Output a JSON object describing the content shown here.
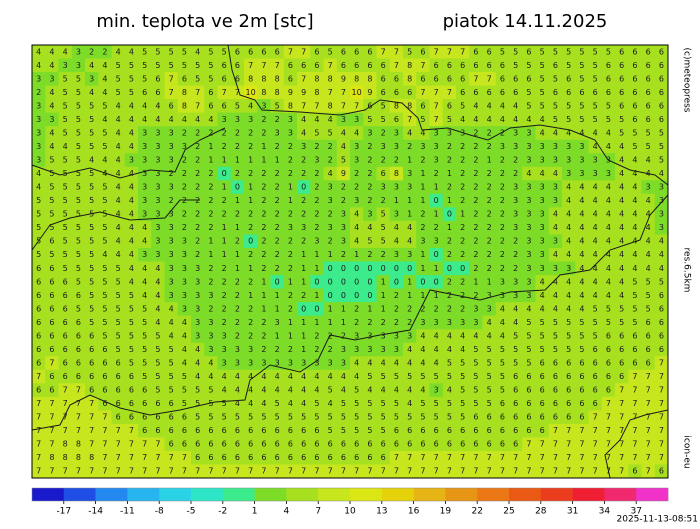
{
  "header": {
    "title": "min. teplota ve 2m [stc]",
    "date": "piatok 14.11.2025"
  },
  "side_labels": {
    "copyright": "(c)meteopress",
    "resolution": "res.6.5km",
    "model": "icon-eu"
  },
  "timestamp": "2025-11-13-08:51",
  "colorbar": {
    "lim": [
      -20,
      40
    ],
    "ticks": [
      -17,
      -14,
      -11,
      -8,
      -5,
      -2,
      1,
      4,
      7,
      10,
      13,
      16,
      19,
      22,
      25,
      28,
      31,
      34,
      37
    ],
    "colors": [
      "#1a1acd",
      "#1e4ee6",
      "#2389f0",
      "#28b4f0",
      "#2ad2e6",
      "#2de6c8",
      "#3ceb8c",
      "#7ddc28",
      "#a6e01e",
      "#c8e61e",
      "#dce614",
      "#e6d20a",
      "#e6b414",
      "#e69614",
      "#eb7814",
      "#eb5a14",
      "#eb3c1e",
      "#f01e32",
      "#f0286e",
      "#f032c8"
    ]
  },
  "grid": {
    "rows": [
      [
        4,
        4,
        4,
        3,
        2,
        2,
        4,
        4,
        5,
        5,
        5,
        5,
        4,
        5,
        5,
        6,
        6,
        6,
        6,
        7,
        7,
        6,
        5,
        6,
        6,
        6,
        7,
        7,
        5,
        6,
        7,
        7,
        7,
        6,
        6,
        5,
        5,
        6,
        5,
        5,
        5,
        5,
        5,
        5,
        6,
        6,
        6,
        6
      ],
      [
        4,
        4,
        3,
        3,
        4,
        4,
        5,
        5,
        5,
        5,
        5,
        5,
        5,
        5,
        6,
        6,
        7,
        7,
        7,
        6,
        6,
        6,
        7,
        6,
        6,
        6,
        6,
        7,
        8,
        7,
        6,
        6,
        6,
        6,
        6,
        6,
        5,
        5,
        5,
        6,
        5,
        5,
        5,
        6,
        6,
        6,
        6,
        6
      ],
      [
        3,
        3,
        5,
        5,
        3,
        4,
        5,
        5,
        5,
        6,
        7,
        6,
        5,
        5,
        6,
        6,
        8,
        8,
        8,
        6,
        7,
        8,
        8,
        9,
        8,
        8,
        6,
        6,
        8,
        6,
        6,
        6,
        6,
        7,
        7,
        6,
        6,
        6,
        5,
        5,
        6,
        5,
        5,
        6,
        6,
        6,
        6,
        6
      ],
      [
        2,
        4,
        5,
        5,
        4,
        4,
        5,
        5,
        6,
        6,
        7,
        8,
        7,
        6,
        7,
        7,
        10,
        8,
        8,
        9,
        9,
        8,
        7,
        7,
        10,
        9,
        6,
        6,
        6,
        7,
        7,
        7,
        6,
        6,
        6,
        6,
        6,
        5,
        5,
        6,
        6,
        6,
        6,
        6,
        6,
        6,
        6,
        6
      ],
      [
        3,
        4,
        5,
        5,
        5,
        5,
        4,
        4,
        4,
        4,
        6,
        8,
        7,
        6,
        6,
        5,
        4,
        3,
        5,
        8,
        7,
        7,
        8,
        7,
        7,
        6,
        5,
        8,
        8,
        6,
        7,
        6,
        5,
        4,
        4,
        4,
        4,
        5,
        5,
        5,
        5,
        5,
        5,
        5,
        6,
        6,
        6,
        6
      ],
      [
        3,
        3,
        5,
        5,
        5,
        4,
        4,
        4,
        4,
        4,
        4,
        4,
        4,
        4,
        3,
        3,
        3,
        2,
        2,
        3,
        4,
        4,
        4,
        3,
        3,
        5,
        5,
        6,
        7,
        5,
        7,
        5,
        4,
        4,
        4,
        4,
        4,
        4,
        4,
        5,
        5,
        5,
        5,
        5,
        5,
        6,
        6,
        6
      ],
      [
        3,
        4,
        5,
        5,
        5,
        5,
        4,
        4,
        3,
        3,
        3,
        2,
        2,
        2,
        2,
        2,
        2,
        2,
        3,
        3,
        4,
        5,
        5,
        4,
        4,
        3,
        2,
        3,
        4,
        4,
        3,
        3,
        3,
        2,
        2,
        2,
        3,
        3,
        4,
        4,
        4,
        4,
        4,
        4,
        5,
        5,
        5,
        5
      ],
      [
        3,
        4,
        4,
        5,
        5,
        5,
        4,
        4,
        3,
        3,
        3,
        3,
        2,
        1,
        2,
        2,
        2,
        1,
        2,
        2,
        3,
        2,
        2,
        4,
        3,
        2,
        3,
        3,
        2,
        3,
        3,
        2,
        2,
        2,
        2,
        3,
        3,
        3,
        3,
        3,
        3,
        3,
        4,
        4,
        4,
        5,
        5,
        5
      ],
      [
        3,
        5,
        5,
        5,
        4,
        4,
        4,
        3,
        3,
        3,
        3,
        2,
        2,
        1,
        1,
        1,
        1,
        1,
        1,
        2,
        2,
        3,
        2,
        5,
        3,
        2,
        2,
        2,
        1,
        2,
        3,
        2,
        2,
        2,
        1,
        2,
        2,
        3,
        3,
        3,
        3,
        3,
        3,
        3,
        4,
        4,
        4,
        5
      ],
      [
        4,
        5,
        5,
        5,
        5,
        4,
        4,
        4,
        3,
        3,
        2,
        2,
        2,
        2,
        0,
        2,
        2,
        2,
        2,
        2,
        2,
        2,
        4,
        9,
        2,
        2,
        6,
        8,
        3,
        1,
        2,
        1,
        2,
        2,
        2,
        2,
        2,
        4,
        4,
        4,
        3,
        3,
        3,
        3,
        4,
        4,
        4,
        4
      ],
      [
        4,
        5,
        5,
        5,
        5,
        5,
        4,
        4,
        3,
        3,
        3,
        2,
        2,
        2,
        1,
        0,
        1,
        2,
        2,
        1,
        0,
        2,
        3,
        2,
        2,
        2,
        3,
        3,
        3,
        1,
        1,
        2,
        2,
        2,
        2,
        2,
        3,
        3,
        3,
        3,
        4,
        4,
        4,
        4,
        4,
        4,
        3,
        3
      ],
      [
        5,
        5,
        5,
        5,
        5,
        5,
        4,
        4,
        3,
        3,
        2,
        2,
        2,
        2,
        2,
        1,
        1,
        2,
        2,
        1,
        2,
        2,
        3,
        2,
        3,
        2,
        2,
        1,
        1,
        1,
        0,
        1,
        2,
        2,
        2,
        2,
        3,
        3,
        3,
        3,
        4,
        4,
        4,
        4,
        4,
        4,
        4,
        3
      ],
      [
        5,
        5,
        5,
        5,
        5,
        5,
        4,
        4,
        3,
        3,
        3,
        2,
        2,
        2,
        2,
        2,
        2,
        2,
        2,
        2,
        2,
        2,
        2,
        3,
        4,
        3,
        5,
        3,
        1,
        2,
        1,
        0,
        1,
        2,
        2,
        2,
        3,
        3,
        3,
        4,
        4,
        4,
        4,
        4,
        4,
        4,
        4,
        3
      ],
      [
        5,
        5,
        5,
        5,
        5,
        5,
        4,
        4,
        4,
        3,
        3,
        2,
        2,
        2,
        1,
        1,
        2,
        2,
        2,
        3,
        3,
        2,
        3,
        3,
        4,
        4,
        5,
        4,
        4,
        2,
        2,
        1,
        2,
        2,
        2,
        2,
        3,
        3,
        3,
        4,
        4,
        4,
        4,
        4,
        4,
        4,
        4,
        3
      ],
      [
        5,
        6,
        5,
        5,
        5,
        5,
        4,
        4,
        4,
        3,
        3,
        3,
        2,
        1,
        1,
        2,
        0,
        2,
        2,
        2,
        2,
        3,
        2,
        3,
        4,
        5,
        5,
        4,
        4,
        3,
        3,
        2,
        2,
        2,
        2,
        2,
        2,
        3,
        3,
        3,
        4,
        4,
        4,
        4,
        4,
        4,
        4,
        4
      ],
      [
        5,
        5,
        5,
        5,
        5,
        4,
        4,
        4,
        3,
        3,
        3,
        3,
        2,
        1,
        1,
        1,
        2,
        2,
        2,
        2,
        1,
        1,
        1,
        2,
        1,
        2,
        2,
        3,
        3,
        1,
        0,
        2,
        2,
        2,
        2,
        2,
        2,
        3,
        3,
        4,
        4,
        4,
        4,
        4,
        4,
        4,
        4,
        4
      ],
      [
        6,
        6,
        5,
        5,
        5,
        5,
        5,
        4,
        4,
        4,
        3,
        3,
        3,
        2,
        2,
        1,
        1,
        2,
        2,
        2,
        1,
        1,
        0,
        0,
        0,
        0,
        0,
        0,
        0,
        1,
        1,
        0,
        0,
        2,
        2,
        2,
        2,
        3,
        3,
        3,
        3,
        4,
        4,
        4,
        4,
        4,
        4,
        4
      ],
      [
        6,
        6,
        6,
        5,
        5,
        5,
        5,
        4,
        4,
        4,
        3,
        3,
        3,
        2,
        2,
        2,
        2,
        1,
        0,
        1,
        1,
        0,
        0,
        0,
        0,
        0,
        1,
        0,
        1,
        0,
        0,
        2,
        2,
        1,
        1,
        3,
        3,
        3,
        4,
        4,
        4,
        4,
        4,
        4,
        4,
        5,
        5,
        5
      ],
      [
        6,
        6,
        6,
        6,
        5,
        5,
        5,
        5,
        4,
        4,
        3,
        3,
        3,
        3,
        2,
        2,
        1,
        1,
        1,
        2,
        2,
        1,
        0,
        0,
        0,
        0,
        1,
        2,
        1,
        1,
        1,
        2,
        2,
        2,
        3,
        3,
        3,
        3,
        4,
        4,
        4,
        4,
        4,
        4,
        4,
        5,
        5,
        6
      ],
      [
        6,
        6,
        6,
        5,
        5,
        5,
        5,
        5,
        5,
        4,
        4,
        3,
        3,
        2,
        2,
        2,
        2,
        1,
        1,
        2,
        0,
        0,
        1,
        1,
        2,
        1,
        1,
        2,
        2,
        2,
        2,
        2,
        2,
        3,
        3,
        4,
        4,
        4,
        4,
        4,
        4,
        4,
        5,
        5,
        5,
        5,
        5,
        6
      ],
      [
        6,
        6,
        6,
        6,
        5,
        5,
        5,
        5,
        5,
        4,
        4,
        4,
        3,
        3,
        2,
        2,
        2,
        2,
        3,
        1,
        1,
        1,
        1,
        1,
        2,
        2,
        2,
        2,
        2,
        3,
        3,
        3,
        3,
        3,
        4,
        4,
        4,
        5,
        5,
        5,
        5,
        5,
        5,
        5,
        5,
        5,
        6,
        6
      ],
      [
        6,
        6,
        6,
        6,
        6,
        5,
        5,
        5,
        5,
        5,
        4,
        4,
        3,
        3,
        3,
        2,
        2,
        2,
        1,
        1,
        1,
        2,
        2,
        2,
        3,
        3,
        3,
        3,
        3,
        4,
        4,
        4,
        4,
        4,
        4,
        4,
        5,
        5,
        5,
        5,
        5,
        5,
        5,
        6,
        6,
        6,
        6,
        6
      ],
      [
        6,
        6,
        6,
        6,
        6,
        6,
        5,
        5,
        5,
        5,
        5,
        4,
        4,
        3,
        3,
        3,
        3,
        2,
        2,
        2,
        1,
        2,
        2,
        3,
        3,
        3,
        3,
        3,
        4,
        4,
        4,
        4,
        4,
        5,
        5,
        5,
        5,
        5,
        5,
        5,
        5,
        5,
        6,
        6,
        6,
        6,
        6,
        6
      ],
      [
        6,
        7,
        6,
        6,
        6,
        6,
        6,
        5,
        5,
        5,
        5,
        4,
        4,
        4,
        3,
        3,
        3,
        3,
        3,
        3,
        3,
        3,
        3,
        3,
        4,
        4,
        4,
        4,
        4,
        4,
        4,
        5,
        5,
        5,
        5,
        5,
        5,
        5,
        6,
        6,
        6,
        6,
        6,
        6,
        6,
        6,
        6,
        7
      ],
      [
        7,
        6,
        6,
        6,
        6,
        6,
        6,
        6,
        5,
        5,
        5,
        5,
        4,
        4,
        4,
        4,
        4,
        4,
        4,
        4,
        4,
        4,
        4,
        4,
        4,
        5,
        5,
        5,
        5,
        5,
        5,
        5,
        5,
        5,
        5,
        5,
        6,
        6,
        6,
        6,
        6,
        6,
        6,
        6,
        6,
        7,
        7,
        7
      ],
      [
        6,
        6,
        7,
        7,
        6,
        6,
        6,
        6,
        6,
        5,
        5,
        5,
        5,
        5,
        4,
        4,
        4,
        4,
        4,
        4,
        4,
        4,
        5,
        4,
        5,
        4,
        4,
        4,
        4,
        4,
        3,
        4,
        5,
        5,
        5,
        5,
        6,
        6,
        6,
        6,
        6,
        6,
        6,
        6,
        7,
        7,
        7,
        7
      ],
      [
        7,
        7,
        7,
        7,
        7,
        6,
        6,
        6,
        6,
        6,
        6,
        5,
        5,
        5,
        5,
        4,
        4,
        4,
        5,
        4,
        4,
        5,
        4,
        5,
        5,
        5,
        5,
        5,
        4,
        5,
        5,
        5,
        5,
        5,
        5,
        6,
        6,
        6,
        6,
        6,
        6,
        6,
        6,
        7,
        7,
        7,
        7,
        7
      ],
      [
        7,
        7,
        7,
        7,
        7,
        7,
        6,
        6,
        6,
        6,
        6,
        6,
        5,
        5,
        5,
        5,
        5,
        5,
        5,
        5,
        5,
        5,
        5,
        5,
        5,
        5,
        5,
        5,
        5,
        5,
        5,
        5,
        5,
        6,
        6,
        6,
        6,
        6,
        6,
        6,
        6,
        6,
        7,
        7,
        7,
        7,
        7,
        7
      ],
      [
        7,
        7,
        7,
        7,
        7,
        7,
        7,
        7,
        6,
        6,
        6,
        6,
        6,
        6,
        6,
        6,
        6,
        6,
        6,
        6,
        6,
        6,
        5,
        5,
        5,
        5,
        5,
        6,
        6,
        6,
        6,
        6,
        6,
        6,
        6,
        6,
        6,
        6,
        6,
        7,
        7,
        7,
        7,
        7,
        7,
        7,
        7,
        7
      ],
      [
        7,
        7,
        8,
        8,
        7,
        7,
        7,
        7,
        7,
        7,
        6,
        6,
        6,
        6,
        6,
        6,
        6,
        6,
        6,
        6,
        6,
        6,
        6,
        6,
        6,
        6,
        6,
        6,
        6,
        6,
        6,
        6,
        6,
        6,
        6,
        6,
        6,
        7,
        7,
        7,
        7,
        7,
        7,
        7,
        7,
        7,
        7,
        7
      ],
      [
        7,
        8,
        8,
        8,
        8,
        7,
        7,
        7,
        7,
        7,
        7,
        7,
        6,
        6,
        6,
        6,
        6,
        6,
        6,
        6,
        6,
        6,
        6,
        6,
        6,
        6,
        6,
        7,
        7,
        7,
        7,
        7,
        7,
        7,
        7,
        7,
        7,
        7,
        7,
        7,
        7,
        7,
        7,
        7,
        7,
        7,
        7,
        7
      ],
      [
        7,
        7,
        7,
        7,
        7,
        7,
        7,
        7,
        7,
        7,
        7,
        7,
        7,
        7,
        7,
        7,
        7,
        7,
        7,
        7,
        7,
        7,
        7,
        7,
        7,
        7,
        7,
        7,
        7,
        7,
        7,
        7,
        7,
        7,
        7,
        7,
        7,
        7,
        7,
        7,
        7,
        7,
        7,
        7,
        7,
        6,
        7,
        6
      ]
    ]
  }
}
